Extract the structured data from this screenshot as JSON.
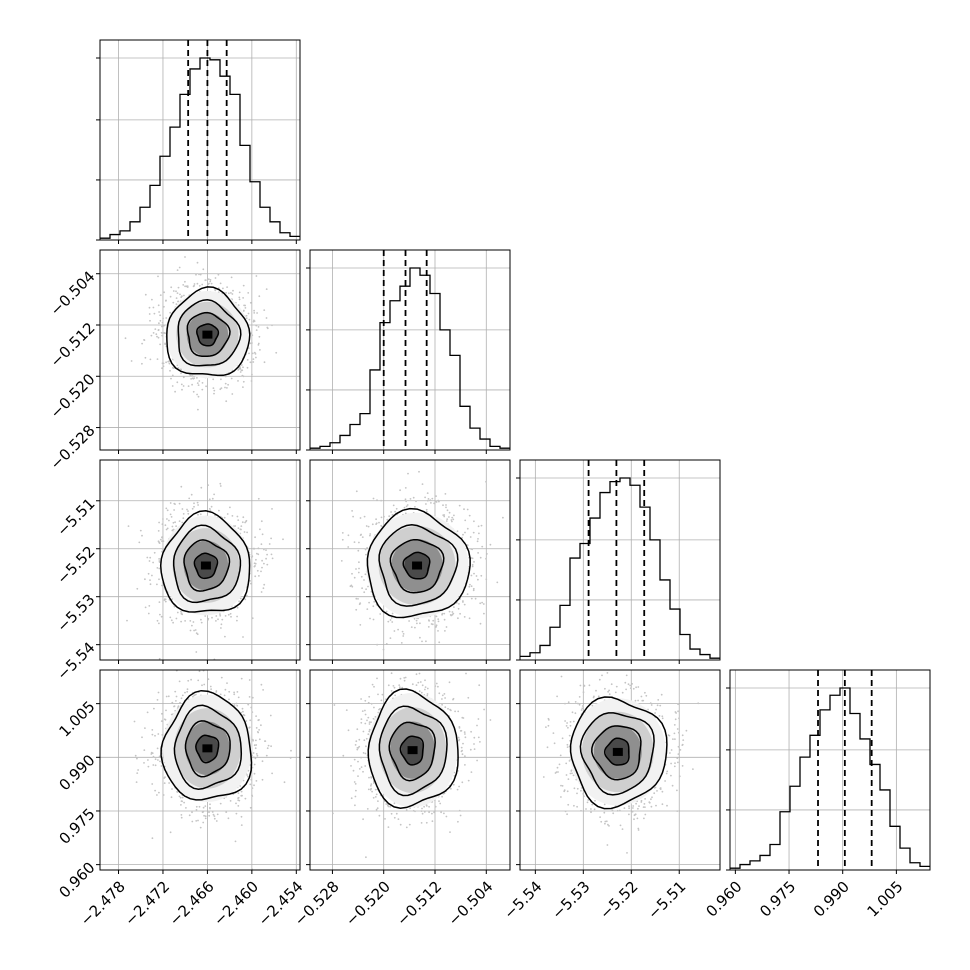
{
  "chart_data": {
    "type": "corner",
    "title": "",
    "parameters": [
      {
        "index": 0,
        "label": "",
        "range": [
          -2.4805,
          -2.4535
        ],
        "ticks": [
          "−2.478",
          "−2.472",
          "−2.466",
          "−2.460",
          "−2.454"
        ],
        "tick_values": [
          -2.478,
          -2.472,
          -2.466,
          -2.46,
          -2.454
        ],
        "quantiles": [
          -2.4686,
          -2.466,
          -2.4634
        ]
      },
      {
        "index": 1,
        "label": "",
        "range": [
          -0.5315,
          -0.5003
        ],
        "ticks": [
          "−0.528",
          "−0.520",
          "−0.512",
          "−0.504"
        ],
        "tick_values": [
          -0.528,
          -0.52,
          -0.512,
          -0.504
        ],
        "quantiles": [
          -0.52,
          -0.5166,
          -0.5133
        ]
      },
      {
        "index": 2,
        "label": "",
        "range": [
          -5.5432,
          -5.5015
        ],
        "ticks": [
          "−5.54",
          "−5.53",
          "−5.52",
          "−5.51"
        ],
        "tick_values": [
          -5.54,
          -5.53,
          -5.52,
          -5.51
        ],
        "quantiles": [
          -5.5289,
          -5.5231,
          -5.5173
        ]
      },
      {
        "index": 3,
        "label": "",
        "range": [
          0.9585,
          1.0144
        ],
        "ticks": [
          "0.960",
          "0.975",
          "0.990",
          "1.005"
        ],
        "tick_values": [
          0.96,
          0.975,
          0.99,
          1.005
        ],
        "quantiles": [
          0.9831,
          0.9906,
          0.9981
        ]
      }
    ],
    "histograms": [
      {
        "param": 0,
        "bins": 20,
        "counts": [
          1,
          3,
          5,
          10,
          18,
          30,
          46,
          62,
          80,
          94,
          100,
          99,
          90,
          80,
          52,
          32,
          18,
          10,
          4,
          2
        ]
      },
      {
        "param": 1,
        "bins": 20,
        "counts": [
          1,
          2,
          4,
          8,
          14,
          20,
          44,
          70,
          82,
          90,
          100,
          96,
          86,
          66,
          52,
          24,
          12,
          6,
          2,
          1
        ]
      },
      {
        "param": 2,
        "bins": 20,
        "counts": [
          2,
          4,
          8,
          18,
          30,
          56,
          64,
          78,
          92,
          98,
          100,
          96,
          84,
          66,
          44,
          28,
          14,
          6,
          3,
          1
        ]
      },
      {
        "param": 3,
        "bins": 20,
        "counts": [
          1,
          3,
          5,
          8,
          14,
          32,
          46,
          62,
          74,
          88,
          96,
          100,
          86,
          72,
          58,
          44,
          24,
          12,
          4,
          2
        ]
      }
    ],
    "joint_2d": [
      {
        "x_param": 0,
        "y_param": 1,
        "peak": [
          -2.466,
          -0.5135
        ],
        "sigma": [
          0.0028,
          0.0034
        ]
      },
      {
        "x_param": 0,
        "y_param": 2,
        "peak": [
          -2.4662,
          -5.5235
        ],
        "sigma": [
          0.003,
          0.0052
        ]
      },
      {
        "x_param": 1,
        "y_param": 2,
        "peak": [
          -0.5148,
          -5.5235
        ],
        "sigma": [
          0.004,
          0.0055
        ]
      },
      {
        "x_param": 0,
        "y_param": 3,
        "peak": [
          -2.466,
          0.9925
        ],
        "sigma": [
          0.003,
          0.0075
        ]
      },
      {
        "x_param": 1,
        "y_param": 3,
        "peak": [
          -0.5155,
          0.992
        ],
        "sigma": [
          0.0035,
          0.008
        ]
      },
      {
        "x_param": 2,
        "y_param": 3,
        "peak": [
          -5.5228,
          0.9915
        ],
        "sigma": [
          0.005,
          0.0075
        ]
      }
    ],
    "contour_levels_sigma": [
      0.5,
      1.0,
      1.5,
      2.0
    ],
    "grid": true,
    "legend": "none",
    "colors": {
      "axes": "#000000",
      "grid": "#b0b0b0",
      "hist_line": "#000000",
      "points": "#c4c4c4",
      "density_dark": "#000000",
      "density_light": "#ffffff"
    }
  }
}
